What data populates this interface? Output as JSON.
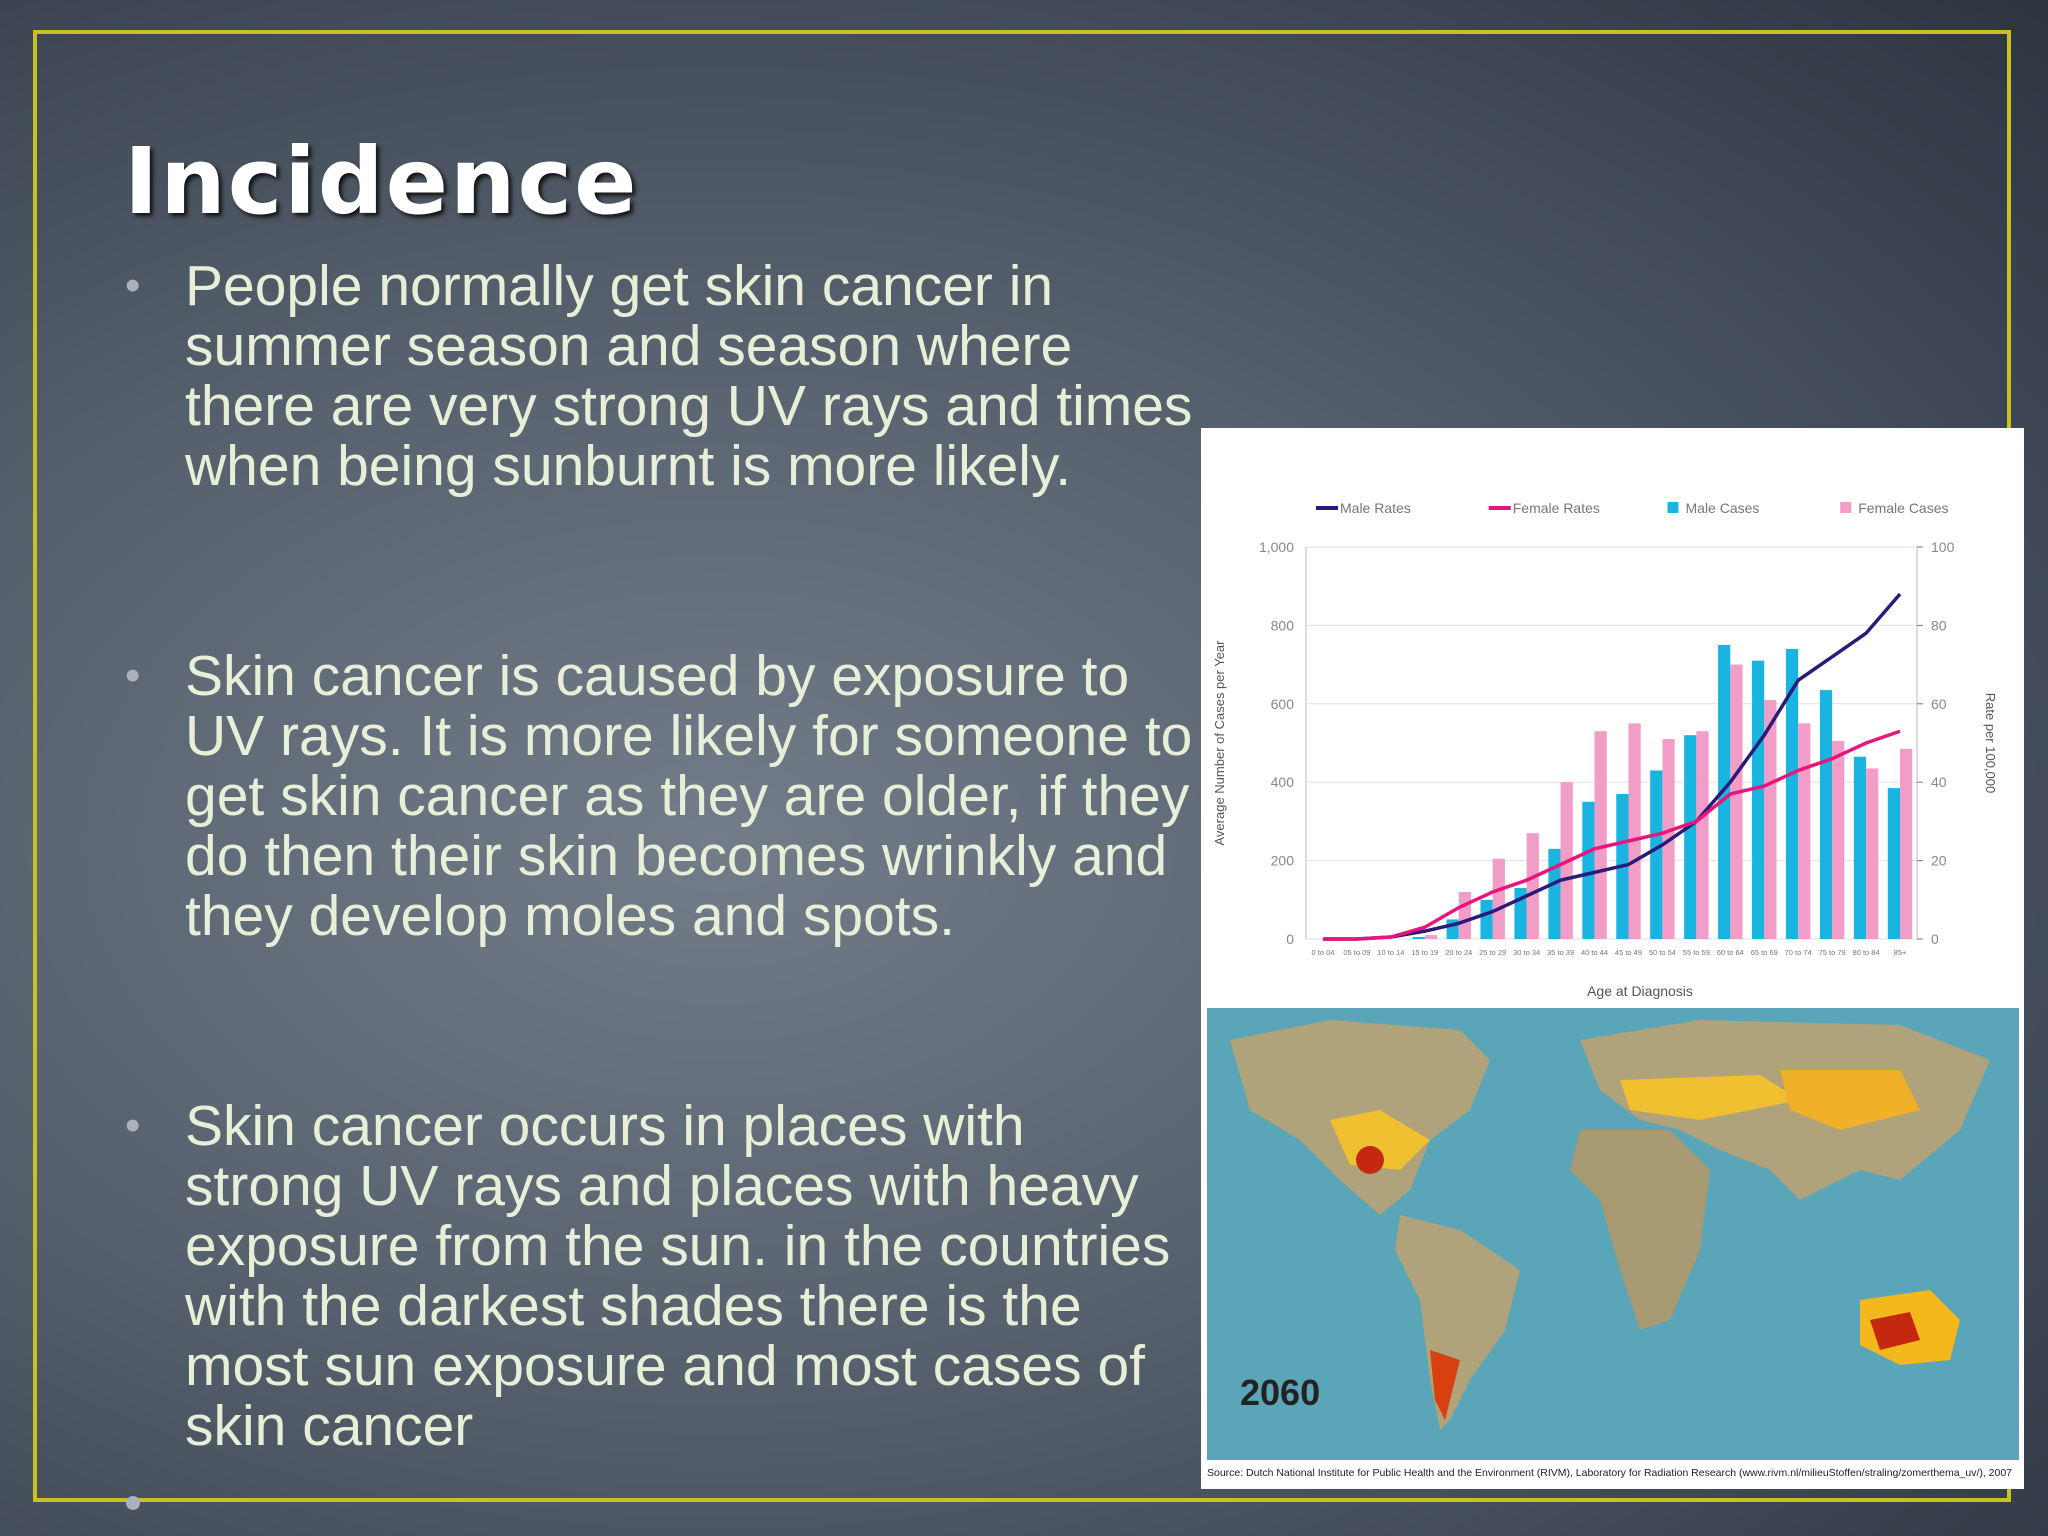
{
  "slide": {
    "title": "Incidence",
    "bullets": [
      "People normally get skin cancer in summer season and season where there are very strong UV rays and times when being sunburnt  is more likely.",
      "Skin cancer is caused by exposure to UV rays. It is more likely for someone to get skin cancer as they are older, if they do then their skin becomes wrinkly and they develop moles and spots.",
      "Skin cancer occurs in places with strong UV rays and places with heavy exposure from the sun. in the countries with the darkest shades there is the most sun exposure and most cases of skin cancer"
    ]
  },
  "chart_data": {
    "type": "bar",
    "xlabel": "Age at Diagnosis",
    "ylabel": "Average Number of Cases per Year",
    "y2label": "Rate per 100,000",
    "categories": [
      "0 to 04",
      "05 to 09",
      "10 to 14",
      "15 to 19",
      "20 to 24",
      "25 to 29",
      "30 to 34",
      "35 to 39",
      "40 to 44",
      "45 to 49",
      "50 to 54",
      "55 to 59",
      "60 to 64",
      "65 to 69",
      "70 to 74",
      "75 to 79",
      "80 to 84",
      "85+"
    ],
    "series": [
      {
        "name": "Male Rates",
        "type": "line",
        "axis": "y2",
        "color": "#2a1a7a",
        "values": [
          0,
          0,
          0.5,
          2,
          4,
          7,
          11,
          15,
          17,
          19,
          24,
          30,
          40,
          52,
          66,
          72,
          78,
          88
        ]
      },
      {
        "name": "Female Rates",
        "type": "line",
        "axis": "y2",
        "color": "#e8157a",
        "values": [
          0,
          0,
          0.5,
          3,
          8,
          12,
          15,
          19,
          23,
          25,
          27,
          30,
          37,
          39,
          43,
          46,
          50,
          53
        ]
      },
      {
        "name": "Male Cases",
        "type": "bar",
        "color": "#1ab4e0",
        "values": [
          0,
          0,
          0,
          5,
          50,
          100,
          130,
          230,
          350,
          370,
          430,
          520,
          750,
          710,
          740,
          635,
          465,
          385
        ]
      },
      {
        "name": "Female Cases",
        "type": "bar",
        "color": "#f29cc8",
        "values": [
          0,
          0,
          0,
          10,
          120,
          205,
          270,
          400,
          530,
          550,
          510,
          530,
          700,
          610,
          550,
          505,
          435,
          485
        ]
      }
    ],
    "ylim": [
      0,
      1000
    ],
    "yticks": [
      0,
      200,
      400,
      600,
      800,
      {
        "value": 1000,
        "label": "1,000"
      }
    ],
    "y2lim": [
      0,
      100
    ],
    "y2ticks": [
      0,
      20,
      40,
      60,
      80,
      100
    ],
    "grid": true
  },
  "map": {
    "year": "2060",
    "source": "Source: Dutch National Institute for Public Health and the Environment (RIVM), Laboratory for Radiation Research (www.rivm.nl/milieuStoffen/straling/zomerthema_uv/), 2007"
  }
}
